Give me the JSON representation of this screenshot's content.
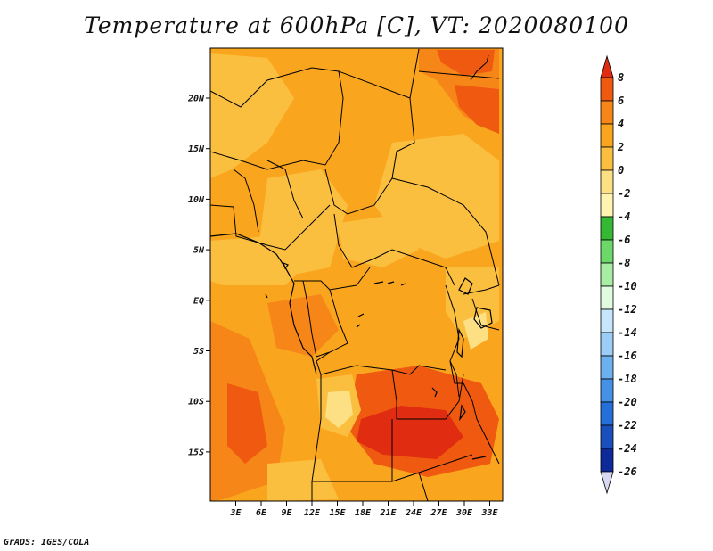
{
  "title": "Temperature at 600hPa [C], VT: 2020080100",
  "credit": "GrADS: IGES/COLA",
  "chart_data": {
    "type": "heatmap",
    "title": "Temperature at 600hPa [C], VT: 2020080100",
    "variable": "Temperature at 600hPa",
    "units": "C",
    "valid_time": "2020080100",
    "x_ticks": [
      "3E",
      "6E",
      "9E",
      "12E",
      "15E",
      "18E",
      "21E",
      "24E",
      "27E",
      "30E",
      "33E"
    ],
    "y_ticks": [
      "20N",
      "15N",
      "10N",
      "5N",
      "EQ",
      "5S",
      "10S",
      "15S"
    ],
    "lon_range": [
      0.5,
      35
    ],
    "lat_range": [
      -20,
      24.5
    ],
    "colorbar": {
      "levels": [
        8,
        6,
        4,
        2,
        0,
        -2,
        -4,
        -6,
        -8,
        -10,
        -12,
        -14,
        -16,
        -18,
        -20,
        -22,
        -24,
        -26
      ],
      "colors": [
        "#e02c10",
        "#ef5a10",
        "#f78618",
        "#f9a51e",
        "#fbbf40",
        "#fde084",
        "#fff3b0",
        "#35b934",
        "#6cd86a",
        "#a7eda3",
        "#e1fbe1",
        "#c6e6fb",
        "#9bcdf6",
        "#6db0ee",
        "#4491e6",
        "#2470d8",
        "#1a50bc",
        "#0e2a98",
        "#0a0c62"
      ]
    },
    "field_summary": {
      "dominant_range": [
        0,
        4
      ],
      "warm_core_range": [
        6,
        8
      ],
      "warm_core_location": "southern Africa 10S-16S, 18E-30E",
      "cool_spot_range": [
        -4,
        0
      ],
      "cool_spot_location": "near 12S 15E"
    }
  }
}
